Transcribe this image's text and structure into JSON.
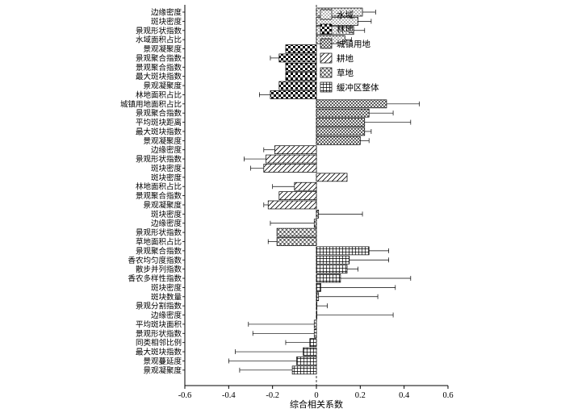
{
  "chart_data": {
    "type": "bar",
    "orientation": "horizontal",
    "title": "",
    "xlabel": "综合相关系数",
    "ylabel": "",
    "xlim": [
      -0.6,
      0.6
    ],
    "x_ticks": [
      -0.6,
      -0.4,
      -0.2,
      0,
      0.2,
      0.4,
      0.6
    ],
    "x_tick_labels": [
      "-0.6",
      "-0.4",
      "-0.2",
      "0",
      "0.2",
      "0.4",
      "0.6"
    ],
    "grid": false,
    "legend_position": "top-right",
    "series": [
      {
        "name": "水域",
        "pattern": "dots",
        "items": [
          {
            "label": "边缘密度",
            "value": 0.21,
            "err": 0.06
          },
          {
            "label": "斑块密度",
            "value": 0.19,
            "err": 0.06
          },
          {
            "label": "景观形状指数",
            "value": 0.17,
            "err": 0.05
          },
          {
            "label": "水域面积占比",
            "value": 0.13,
            "err": 0.03
          }
        ]
      },
      {
        "name": "林地",
        "pattern": "checker",
        "items": [
          {
            "label": "景观凝聚度",
            "value": -0.14,
            "err": 0.0
          },
          {
            "label": "景观聚合指数",
            "value": -0.17,
            "err": 0.04
          },
          {
            "label": "景观聚合指数",
            "value": -0.14,
            "err": 0.0
          },
          {
            "label": "最大斑块指数",
            "value": -0.14,
            "err": 0.0
          },
          {
            "label": "景观凝聚度",
            "value": -0.17,
            "err": 0.0
          },
          {
            "label": "林地面积占比",
            "value": -0.21,
            "err": 0.05
          }
        ]
      },
      {
        "name": "城镇用地",
        "pattern": "crosshatch",
        "items": [
          {
            "label": "城镇用地面积占比",
            "value": 0.32,
            "err": 0.15
          },
          {
            "label": "景观聚合指数",
            "value": 0.24,
            "err": 0.11
          },
          {
            "label": "平均斑块距离",
            "value": 0.22,
            "err": 0.21
          },
          {
            "label": "最大斑块指数",
            "value": 0.22,
            "err": 0.03
          },
          {
            "label": "景观凝聚度",
            "value": 0.2,
            "err": 0.04
          }
        ]
      },
      {
        "name": "耕地",
        "pattern": "diagonal",
        "items": [
          {
            "label": "边缘密度",
            "value": -0.19,
            "err": 0.05
          },
          {
            "label": "景观形状指数",
            "value": -0.23,
            "err": 0.1
          },
          {
            "label": "斑块密度",
            "value": -0.24,
            "err": 0.06
          },
          {
            "label": "斑块密度",
            "value": 0.14,
            "err": 0.0
          },
          {
            "label": "林地面积占比",
            "value": -0.1,
            "err": 0.1
          },
          {
            "label": "景观聚合指数",
            "value": -0.17,
            "err": 0.0
          },
          {
            "label": "景观凝聚度",
            "value": -0.22,
            "err": 0.02
          }
        ]
      },
      {
        "name": "草地",
        "pattern": "grid",
        "items": [
          {
            "label": "斑块密度",
            "value": 0.01,
            "err": 0.2
          },
          {
            "label": "边缘密度",
            "value": -0.01,
            "err": 0.2
          },
          {
            "label": "景观形状指数",
            "value": -0.18,
            "err": 0.0
          },
          {
            "label": "草地面积占比",
            "value": -0.18,
            "err": 0.04
          }
        ]
      },
      {
        "name": "缓冲区整体",
        "pattern": "squares",
        "items": [
          {
            "label": "景观聚合指数",
            "value": 0.24,
            "err": 0.09
          },
          {
            "label": "香农均匀度指数",
            "value": 0.15,
            "err": 0.18
          },
          {
            "label": "散步并列指数",
            "value": 0.14,
            "err": 0.05
          },
          {
            "label": "香农多样性指数",
            "value": 0.11,
            "err": 0.32
          },
          {
            "label": "斑块密度",
            "value": 0.02,
            "err": 0.34
          },
          {
            "label": "斑块数量",
            "value": 0.01,
            "err": 0.27
          },
          {
            "label": "景观分割指数",
            "value": 0.0,
            "err": 0.05
          },
          {
            "label": "边缘密度",
            "value": 0.0,
            "err": 0.35
          },
          {
            "label": "平均斑块面积",
            "value": -0.01,
            "err": 0.3
          },
          {
            "label": "景观形状指数",
            "value": -0.01,
            "err": 0.28
          },
          {
            "label": "同类相邻比例",
            "value": -0.03,
            "err": 0.11
          },
          {
            "label": "最大斑块指数",
            "value": -0.06,
            "err": 0.31
          },
          {
            "label": "景观蔓延度",
            "value": -0.09,
            "err": 0.31
          },
          {
            "label": "景观凝聚度",
            "value": -0.11,
            "err": 0.24
          }
        ]
      }
    ]
  }
}
